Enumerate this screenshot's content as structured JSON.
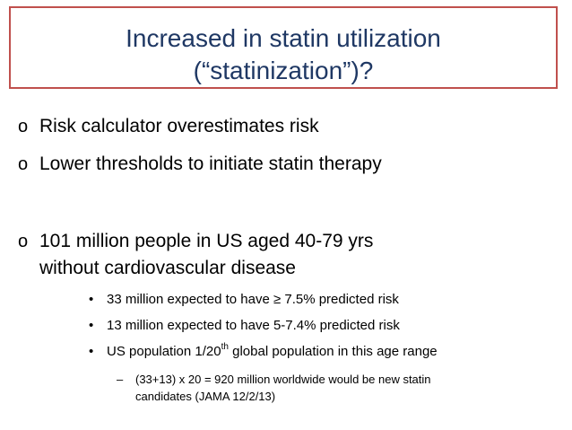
{
  "title": {
    "line1": "Increased in statin utilization",
    "line2": "(“statinization”)?",
    "border_color": "#c0504d",
    "text_color": "#1f3864"
  },
  "bullets": [
    {
      "marker": "o",
      "text": "Risk calculator overestimates risk"
    },
    {
      "marker": "o",
      "text": "Lower thresholds to initiate statin therapy"
    },
    {
      "marker": "o",
      "text": "101 million people in US aged 40-79 yrs",
      "continuation": "without cardiovascular disease"
    }
  ],
  "sub_bullets": [
    {
      "marker": "•",
      "text": "33 million expected to have ≥ 7.5% predicted risk"
    },
    {
      "marker": "•",
      "text": "13 million expected to have 5-7.4% predicted risk"
    },
    {
      "marker": "•",
      "text_before": "US population 1/20",
      "superscript": "th",
      "text_after": " global population in this age range"
    }
  ],
  "sub_sub_bullet": {
    "marker": "–",
    "line1": "(33+13) x 20 = 920 million worldwide would be new statin",
    "line2": "candidates (JAMA  12/2/13)"
  }
}
